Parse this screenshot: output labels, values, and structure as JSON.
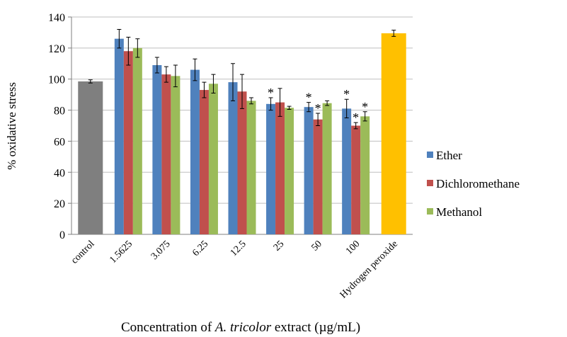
{
  "chart_data": {
    "type": "bar",
    "ylabel": "% oxidative stress",
    "xlabel": [
      "Concentration of ",
      "A. tricolor",
      " extract (µg/mL)"
    ],
    "categories": [
      "control",
      "1.5625",
      "3.075",
      "6.25",
      "12.5",
      "25",
      "50",
      "100",
      "Hydrogen peroxide"
    ],
    "single_bars": {
      "values": [
        98.5,
        null,
        null,
        null,
        null,
        null,
        null,
        null,
        129.5
      ],
      "errors": [
        1,
        null,
        null,
        null,
        null,
        null,
        null,
        null,
        2
      ],
      "colors": [
        "#7f7f7f",
        null,
        null,
        null,
        null,
        null,
        null,
        null,
        "#ffc000"
      ]
    },
    "series": [
      {
        "name": "Ether",
        "color": "#4f81bd",
        "values": [
          null,
          126,
          109,
          106,
          98,
          84,
          82,
          81,
          null
        ],
        "errors": [
          null,
          6,
          5,
          7,
          12,
          4,
          3,
          6,
          null
        ],
        "significance": [
          null,
          null,
          null,
          null,
          null,
          "*",
          "*",
          "*",
          null
        ]
      },
      {
        "name": "Dichloromethane",
        "color": "#c0504d",
        "values": [
          null,
          118,
          103,
          93,
          92,
          85,
          74,
          70,
          null
        ],
        "errors": [
          null,
          9,
          5,
          5,
          11,
          9,
          4,
          2,
          null
        ],
        "significance": [
          null,
          null,
          null,
          null,
          null,
          null,
          "*",
          "*",
          null
        ]
      },
      {
        "name": "Methanol",
        "color": "#9bbb59",
        "values": [
          null,
          120,
          102,
          97,
          86,
          81.5,
          84.5,
          76,
          null
        ],
        "errors": [
          null,
          6,
          7,
          6,
          2,
          1,
          1.5,
          3,
          null
        ],
        "significance": [
          null,
          null,
          null,
          null,
          null,
          null,
          null,
          "*",
          null
        ]
      }
    ],
    "ylim": [
      0,
      140
    ],
    "yticks": [
      0,
      20,
      40,
      60,
      80,
      100,
      120,
      140
    ],
    "grid": true
  }
}
